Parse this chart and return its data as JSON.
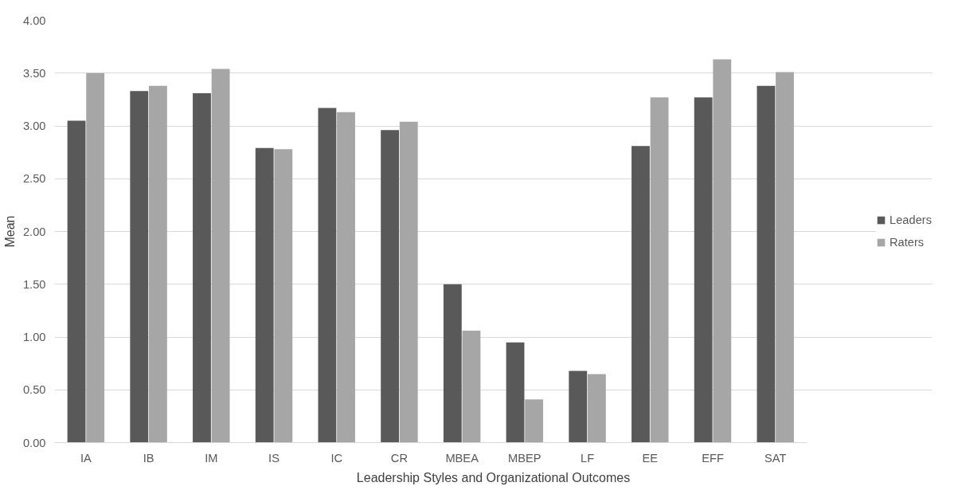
{
  "chart_data": {
    "type": "bar",
    "xlabel": "Leadership Styles and Organizational Outcomes",
    "ylabel": "Mean",
    "categories": [
      "IA",
      "IB",
      "IM",
      "IS",
      "IC",
      "CR",
      "MBEA",
      "MBEP",
      "LF",
      "EE",
      "EFF",
      "SAT"
    ],
    "series": [
      {
        "name": "Leaders",
        "color": "#595959",
        "values": [
          3.05,
          3.33,
          3.31,
          2.79,
          3.17,
          2.96,
          1.5,
          0.95,
          0.68,
          2.81,
          3.27,
          3.38
        ]
      },
      {
        "name": "Raters",
        "color": "#a6a6a6",
        "values": [
          3.5,
          3.38,
          3.54,
          2.78,
          3.13,
          3.04,
          1.06,
          0.41,
          0.65,
          3.27,
          3.63,
          3.51
        ]
      }
    ],
    "ylim": [
      0,
      4
    ],
    "yticks": [
      {
        "value": 0,
        "label": "0.00"
      },
      {
        "value": 0.5,
        "label": "0.50"
      },
      {
        "value": 1,
        "label": "1.00"
      },
      {
        "value": 1.5,
        "label": "1.50"
      },
      {
        "value": 2,
        "label": "2.00"
      },
      {
        "value": 2.5,
        "label": "2.50"
      },
      {
        "value": 3,
        "label": "3.00"
      },
      {
        "value": 3.5,
        "label": "3.50"
      },
      {
        "value": 4,
        "label": "4.00"
      }
    ],
    "grid": "y",
    "legend": "right"
  }
}
